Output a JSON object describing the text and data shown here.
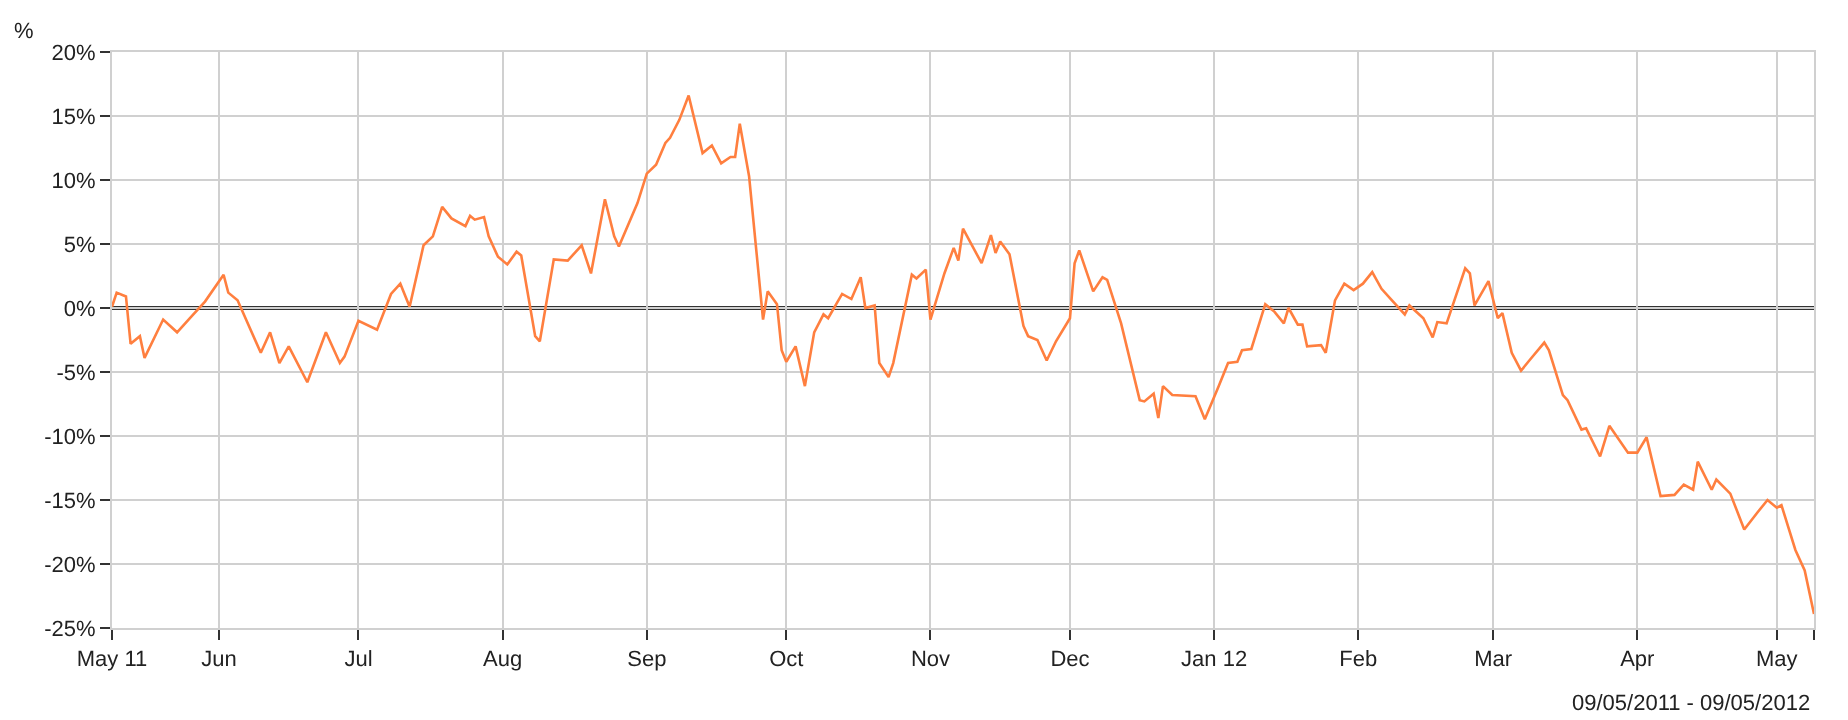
{
  "chart_data": {
    "type": "line",
    "ylabel": "%",
    "annotations": [
      "09/05/2011 - 09/05/2012"
    ],
    "x": [
      "2011-05-09",
      "2011-05-10",
      "2011-05-12",
      "2011-05-13",
      "2011-05-15",
      "2011-05-16",
      "2011-05-20",
      "2011-05-23",
      "2011-05-26",
      "2011-05-29",
      "2011-06-02",
      "2011-06-03",
      "2011-06-05",
      "2011-06-10",
      "2011-06-12",
      "2011-06-14",
      "2011-06-16",
      "2011-06-20",
      "2011-06-24",
      "2011-06-27",
      "2011-06-28",
      "2011-07-01",
      "2011-07-05",
      "2011-07-08",
      "2011-07-10",
      "2011-07-12",
      "2011-07-15",
      "2011-07-17",
      "2011-07-19",
      "2011-07-21",
      "2011-07-24",
      "2011-07-25",
      "2011-07-26",
      "2011-07-28",
      "2011-07-29",
      "2011-07-31",
      "2011-08-02",
      "2011-08-04",
      "2011-08-05",
      "2011-08-08",
      "2011-08-09",
      "2011-08-12",
      "2011-08-15",
      "2011-08-18",
      "2011-08-20",
      "2011-08-23",
      "2011-08-25",
      "2011-08-26",
      "2011-08-30",
      "2011-09-01",
      "2011-09-03",
      "2011-09-05",
      "2011-09-06",
      "2011-09-08",
      "2011-09-10",
      "2011-09-13",
      "2011-09-15",
      "2011-09-17",
      "2011-09-19",
      "2011-09-20",
      "2011-09-21",
      "2011-09-23",
      "2011-09-26",
      "2011-09-27",
      "2011-09-29",
      "2011-09-30",
      "2011-10-01",
      "2011-10-03",
      "2011-10-05",
      "2011-10-07",
      "2011-10-09",
      "2011-10-10",
      "2011-10-13",
      "2011-10-15",
      "2011-10-17",
      "2011-10-18",
      "2011-10-20",
      "2011-10-21",
      "2011-10-23",
      "2011-10-24",
      "2011-10-28",
      "2011-10-29",
      "2011-10-31",
      "2011-11-01",
      "2011-11-04",
      "2011-11-06",
      "2011-11-07",
      "2011-11-08",
      "2011-11-12",
      "2011-11-14",
      "2011-11-15",
      "2011-11-16",
      "2011-11-18",
      "2011-11-21",
      "2011-11-22",
      "2011-11-24",
      "2011-11-26",
      "2011-11-28",
      "2011-12-01",
      "2011-12-02",
      "2011-12-03",
      "2011-12-06",
      "2011-12-08",
      "2011-12-09",
      "2011-12-12",
      "2011-12-16",
      "2011-12-17",
      "2011-12-19",
      "2011-12-20",
      "2011-12-21",
      "2011-12-23",
      "2011-12-28",
      "2011-12-30",
      "2012-01-02",
      "2012-01-04",
      "2012-01-06",
      "2012-01-07",
      "2012-01-09",
      "2012-01-12",
      "2012-01-14",
      "2012-01-16",
      "2012-01-17",
      "2012-01-19",
      "2012-01-20",
      "2012-01-21",
      "2012-01-24",
      "2012-01-25",
      "2012-01-27",
      "2012-01-29",
      "2012-01-31",
      "2012-02-02",
      "2012-02-04",
      "2012-02-06",
      "2012-02-08",
      "2012-02-11",
      "2012-02-12",
      "2012-02-15",
      "2012-02-17",
      "2012-02-18",
      "2012-02-20",
      "2012-02-24",
      "2012-02-25",
      "2012-02-26",
      "2012-02-29",
      "2012-03-02",
      "2012-03-03",
      "2012-03-05",
      "2012-03-07",
      "2012-03-09",
      "2012-03-12",
      "2012-03-13",
      "2012-03-16",
      "2012-03-17",
      "2012-03-20",
      "2012-03-21",
      "2012-03-24",
      "2012-03-26",
      "2012-03-30",
      "2012-04-01",
      "2012-04-03",
      "2012-04-06",
      "2012-04-09",
      "2012-04-11",
      "2012-04-13",
      "2012-04-14",
      "2012-04-17",
      "2012-04-18",
      "2012-04-21",
      "2012-04-24",
      "2012-04-27",
      "2012-04-29",
      "2012-05-01",
      "2012-05-02",
      "2012-05-05",
      "2012-05-07",
      "2012-05-09"
    ],
    "series": [
      {
        "color": "#ff7f3f",
        "values": [
          0.1,
          1.2,
          0.9,
          -2.8,
          -2.2,
          -3.9,
          -0.9,
          -1.9,
          -0.7,
          0.5,
          2.6,
          1.2,
          0.6,
          -3.5,
          -1.9,
          -4.3,
          -3.0,
          -5.8,
          -1.9,
          -4.3,
          -3.8,
          -1.0,
          -1.7,
          1.1,
          1.9,
          0.1,
          4.9,
          5.6,
          7.9,
          7.0,
          6.4,
          7.2,
          6.9,
          7.1,
          5.6,
          4.0,
          3.4,
          4.4,
          4.1,
          -2.2,
          -2.6,
          3.8,
          3.7,
          4.9,
          2.7,
          8.5,
          5.6,
          4.8,
          8.2,
          10.5,
          11.2,
          12.9,
          13.3,
          14.7,
          16.6,
          12.1,
          12.7,
          11.3,
          11.8,
          11.8,
          14.4,
          10.3,
          -0.9,
          1.3,
          0.3,
          -3.3,
          -4.2,
          -3.0,
          -6.1,
          -1.9,
          -0.5,
          -0.8,
          1.1,
          0.7,
          2.4,
          0.0,
          0.2,
          -4.3,
          -5.4,
          -4.3,
          2.6,
          2.3,
          3.0,
          -0.9,
          2.7,
          4.7,
          3.7,
          6.2,
          3.5,
          5.7,
          4.3,
          5.2,
          4.2,
          -1.4,
          -2.2,
          -2.5,
          -4.1,
          -2.6,
          -0.8,
          3.5,
          4.5,
          1.3,
          2.4,
          2.2,
          -1.2,
          -7.2,
          -7.3,
          -6.7,
          -8.6,
          -6.1,
          -6.8,
          -6.9,
          -8.7,
          -6.1,
          -4.3,
          -4.2,
          -3.3,
          -3.2,
          0.3,
          -0.3,
          -1.2,
          0.0,
          -1.3,
          -1.3,
          -3.0,
          -2.9,
          -3.5,
          0.6,
          1.9,
          1.4,
          1.9,
          2.8,
          1.5,
          0.7,
          -0.5,
          0.2,
          -0.8,
          -2.3,
          -1.1,
          -1.2,
          3.1,
          2.7,
          0.2,
          2.1,
          -0.8,
          -0.4,
          -3.5,
          -4.9,
          -4.0,
          -2.7,
          -3.3,
          -6.8,
          -7.2,
          -9.5,
          -9.4,
          -11.6,
          -9.2,
          -11.3,
          -11.3,
          -10.1,
          -14.7,
          -14.6,
          -13.8,
          -14.2,
          -12.0,
          -14.2,
          -13.4,
          -14.5,
          -17.3,
          -15.9,
          -15.0,
          -15.6,
          -15.4,
          -18.9,
          -20.5,
          -23.9
        ]
      }
    ],
    "xlim": [
      "2011-05-09",
      "2012-05-09"
    ],
    "xticks": [
      {
        "value": "2011-05-09",
        "label": "May 11"
      },
      {
        "value": "2011-06-01",
        "label": "Jun"
      },
      {
        "value": "2011-07-01",
        "label": "Jul"
      },
      {
        "value": "2011-08-01",
        "label": "Aug"
      },
      {
        "value": "2011-09-01",
        "label": "Sep"
      },
      {
        "value": "2011-10-01",
        "label": "Oct"
      },
      {
        "value": "2011-11-01",
        "label": "Nov"
      },
      {
        "value": "2011-12-01",
        "label": "Dec"
      },
      {
        "value": "2012-01-01",
        "label": "Jan 12"
      },
      {
        "value": "2012-02-01",
        "label": "Feb"
      },
      {
        "value": "2012-03-01",
        "label": "Mar"
      },
      {
        "value": "2012-04-01",
        "label": "Apr"
      },
      {
        "value": "2012-05-01",
        "label": "May"
      },
      {
        "value": "2012-05-09",
        "label": null
      }
    ],
    "ylim": [
      -25,
      20
    ],
    "yticks": [
      {
        "value": -25,
        "label": "-25%"
      },
      {
        "value": -20,
        "label": "-20%"
      },
      {
        "value": -15,
        "label": "-15%"
      },
      {
        "value": -10,
        "label": "-10%"
      },
      {
        "value": -5,
        "label": "-5%"
      },
      {
        "value": 0,
        "label": "0%"
      },
      {
        "value": 5,
        "label": "5%"
      },
      {
        "value": 10,
        "label": "10%"
      },
      {
        "value": 15,
        "label": "15%"
      },
      {
        "value": 20,
        "label": "20%"
      }
    ],
    "ref_lines": [
      {
        "axis": "y",
        "value": 0,
        "color": "#333333",
        "line_style": "solid"
      }
    ],
    "grid": true,
    "marker": "none",
    "line_style": "solid"
  }
}
